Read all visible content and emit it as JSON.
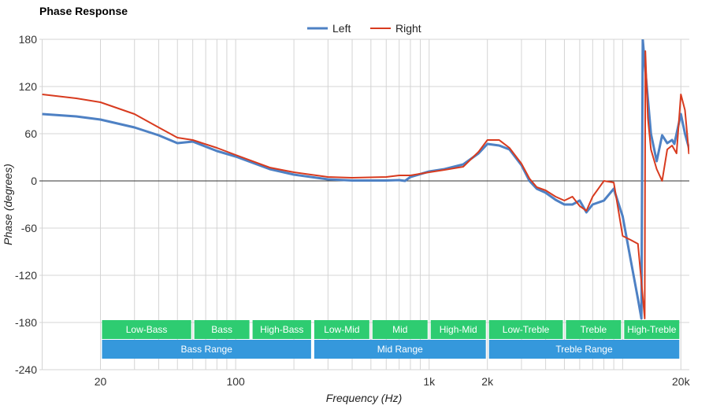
{
  "chart_data": {
    "type": "line",
    "title": "Phase Response",
    "xlabel": "Frequency (Hz)",
    "ylabel": "Phase (degrees)",
    "x_scale": "log",
    "xlim": [
      10,
      22000
    ],
    "ylim": [
      -240,
      180
    ],
    "y_ticks": [
      180,
      120,
      60,
      0,
      -60,
      -120,
      -180,
      -240
    ],
    "x_tick_labels": [
      {
        "value": 20,
        "label": "20"
      },
      {
        "value": 100,
        "label": "100"
      },
      {
        "value": 1000,
        "label": "1k"
      },
      {
        "value": 2000,
        "label": "2k"
      },
      {
        "value": 20000,
        "label": "20k"
      }
    ],
    "grid": true,
    "legend": "top-center",
    "series": [
      {
        "name": "Left",
        "color": "#4e81c4",
        "points": [
          [
            10,
            85
          ],
          [
            15,
            82
          ],
          [
            20,
            78
          ],
          [
            30,
            68
          ],
          [
            40,
            58
          ],
          [
            50,
            48
          ],
          [
            60,
            50
          ],
          [
            80,
            38
          ],
          [
            100,
            31
          ],
          [
            150,
            15
          ],
          [
            200,
            8
          ],
          [
            300,
            2
          ],
          [
            400,
            0.5
          ],
          [
            600,
            0.5
          ],
          [
            700,
            1
          ],
          [
            750,
            0
          ],
          [
            800,
            5
          ],
          [
            1000,
            12
          ],
          [
            1200,
            15
          ],
          [
            1500,
            21
          ],
          [
            1800,
            35
          ],
          [
            2000,
            47
          ],
          [
            2300,
            45
          ],
          [
            2600,
            40
          ],
          [
            3000,
            20
          ],
          [
            3300,
            0
          ],
          [
            3600,
            -10
          ],
          [
            4000,
            -15
          ],
          [
            4500,
            -24
          ],
          [
            5000,
            -30
          ],
          [
            5500,
            -30
          ],
          [
            6000,
            -25
          ],
          [
            6500,
            -40
          ],
          [
            7000,
            -30
          ],
          [
            8000,
            -25
          ],
          [
            9000,
            -10
          ],
          [
            10000,
            -45
          ],
          [
            11000,
            -100
          ],
          [
            12000,
            -150
          ],
          [
            12500,
            -175
          ],
          [
            12700,
            180
          ],
          [
            13000,
            150
          ],
          [
            14000,
            60
          ],
          [
            15000,
            25
          ],
          [
            16000,
            58
          ],
          [
            17000,
            48
          ],
          [
            18000,
            52
          ],
          [
            18500,
            47
          ],
          [
            20000,
            85
          ],
          [
            21000,
            60
          ],
          [
            22000,
            42
          ],
          [
            24000,
            45
          ],
          [
            25500,
            58
          ]
        ]
      },
      {
        "name": "Right",
        "color": "#d83b1f",
        "points": [
          [
            10,
            110
          ],
          [
            15,
            105
          ],
          [
            20,
            100
          ],
          [
            30,
            85
          ],
          [
            40,
            68
          ],
          [
            50,
            55
          ],
          [
            60,
            52
          ],
          [
            80,
            42
          ],
          [
            100,
            33
          ],
          [
            150,
            17
          ],
          [
            200,
            11
          ],
          [
            300,
            5
          ],
          [
            400,
            4
          ],
          [
            600,
            5
          ],
          [
            700,
            7
          ],
          [
            800,
            7
          ],
          [
            1000,
            11
          ],
          [
            1200,
            14
          ],
          [
            1500,
            18
          ],
          [
            1800,
            37
          ],
          [
            2000,
            52
          ],
          [
            2300,
            52
          ],
          [
            2600,
            42
          ],
          [
            3000,
            22
          ],
          [
            3300,
            3
          ],
          [
            3600,
            -8
          ],
          [
            4000,
            -12
          ],
          [
            4500,
            -20
          ],
          [
            5000,
            -25
          ],
          [
            5500,
            -20
          ],
          [
            6000,
            -32
          ],
          [
            6500,
            -38
          ],
          [
            7000,
            -20
          ],
          [
            8000,
            0
          ],
          [
            9000,
            -2
          ],
          [
            10000,
            -70
          ],
          [
            11000,
            -75
          ],
          [
            12000,
            -80
          ],
          [
            13000,
            -175
          ],
          [
            13100,
            165
          ],
          [
            13500,
            80
          ],
          [
            14000,
            40
          ],
          [
            15000,
            15
          ],
          [
            16000,
            0
          ],
          [
            17000,
            40
          ],
          [
            18000,
            45
          ],
          [
            19000,
            35
          ],
          [
            20000,
            110
          ],
          [
            21000,
            90
          ],
          [
            22000,
            35
          ],
          [
            23000,
            50
          ],
          [
            24000,
            75
          ],
          [
            25500,
            65
          ]
        ]
      }
    ],
    "bands_row1": [
      {
        "label": "Low-Bass",
        "from": 20,
        "to": 60
      },
      {
        "label": "Bass",
        "from": 60,
        "to": 120
      },
      {
        "label": "High-Bass",
        "from": 120,
        "to": 250
      },
      {
        "label": "Low-Mid",
        "from": 250,
        "to": 500
      },
      {
        "label": "Mid",
        "from": 500,
        "to": 1000
      },
      {
        "label": "High-Mid",
        "from": 1000,
        "to": 2000
      },
      {
        "label": "Low-Treble",
        "from": 2000,
        "to": 5000
      },
      {
        "label": "Treble",
        "from": 5000,
        "to": 10000
      },
      {
        "label": "High-Treble",
        "from": 10000,
        "to": 20000
      }
    ],
    "bands_row2": [
      {
        "label": "Bass Range",
        "from": 20,
        "to": 250
      },
      {
        "label": "Mid Range",
        "from": 250,
        "to": 2000
      },
      {
        "label": "Treble Range",
        "from": 2000,
        "to": 20000
      }
    ],
    "band_colors": {
      "row1": "#2ecc71",
      "row2": "#3598dc"
    }
  }
}
